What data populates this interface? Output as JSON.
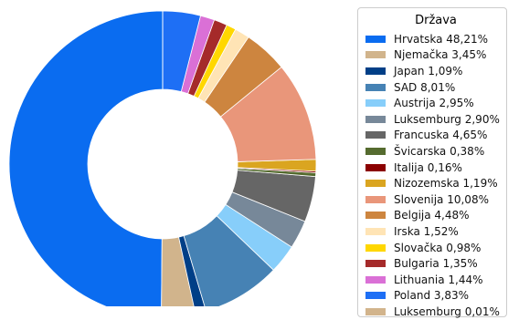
{
  "chart_data": {
    "type": "pie",
    "donut": true,
    "legend_title": "Država",
    "legend_position": "right",
    "slices": [
      {
        "label": "Hrvatska 48,21%",
        "value": 48.21,
        "color": "#0a6cf0"
      },
      {
        "label": "Njemačka 3,45%",
        "value": 3.45,
        "color": "#d1b48c"
      },
      {
        "label": "Japan 1,09%",
        "value": 1.09,
        "color": "#003f87"
      },
      {
        "label": "SAD 8,01%",
        "value": 8.01,
        "color": "#4682b4"
      },
      {
        "label": "Austrija 2,95%",
        "value": 2.95,
        "color": "#87cefa"
      },
      {
        "label": "Luksemburg 2,90%",
        "value": 2.9,
        "color": "#778899"
      },
      {
        "label": "Francuska 4,65%",
        "value": 4.65,
        "color": "#666666"
      },
      {
        "label": "Švicarska 0,38%",
        "value": 0.38,
        "color": "#556b2f"
      },
      {
        "label": "Italija 0,16%",
        "value": 0.16,
        "color": "#8b0000"
      },
      {
        "label": "Nizozemska 1,19%",
        "value": 1.19,
        "color": "#daa520"
      },
      {
        "label": "Slovenija 10,08%",
        "value": 10.08,
        "color": "#e9967a"
      },
      {
        "label": "Belgija 4,48%",
        "value": 4.48,
        "color": "#cd853f"
      },
      {
        "label": "Irska 1,52%",
        "value": 1.52,
        "color": "#ffe4b5"
      },
      {
        "label": "Slovačka 0,98%",
        "value": 0.98,
        "color": "#ffd700"
      },
      {
        "label": "Bulgaria 1,35%",
        "value": 1.35,
        "color": "#a52a2a"
      },
      {
        "label": "Lithuania 1,44%",
        "value": 1.44,
        "color": "#da70d6"
      },
      {
        "label": "Poland 3,83%",
        "value": 3.83,
        "color": "#1e6ff5"
      },
      {
        "label": "Luksemburg 0,01%",
        "value": 0.01,
        "color": "#d2b48c"
      }
    ]
  }
}
